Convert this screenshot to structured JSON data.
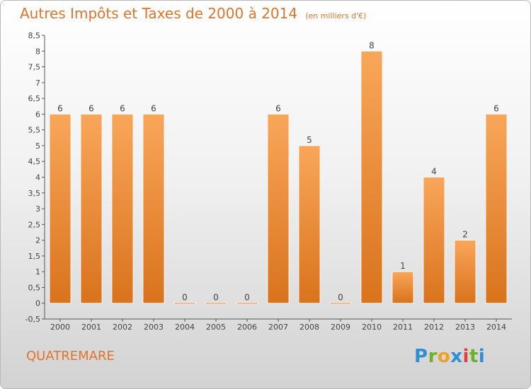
{
  "header": {
    "title": "Autres Impôts et Taxes de 2000 à 2014",
    "unit": "(en milliers d'€)"
  },
  "footer": {
    "commune": "QUATREMARE",
    "logo": "Proxiti"
  },
  "colors": {
    "title": "#e0742a",
    "bar_light": "#f9a65a",
    "bar_dark": "#d9731c",
    "axis": "#555555",
    "grid": "#cfcfcf"
  },
  "chart_data": {
    "type": "bar",
    "categories": [
      "2000",
      "2001",
      "2002",
      "2003",
      "2004",
      "2005",
      "2006",
      "2007",
      "2008",
      "2009",
      "2010",
      "2011",
      "2012",
      "2013",
      "2014"
    ],
    "values": [
      6,
      6,
      6,
      6,
      0,
      0,
      0,
      6,
      5,
      0,
      8,
      1,
      4,
      2,
      6
    ],
    "ylim": [
      -0.5,
      8.5
    ],
    "yticks": [
      "-0,5",
      "0",
      "0,5",
      "1",
      "1,5",
      "2",
      "2,5",
      "3",
      "3,5",
      "4",
      "4,5",
      "5",
      "5,5",
      "6",
      "6,5",
      "7",
      "7,5",
      "8",
      "8,5"
    ],
    "grid": false
  }
}
